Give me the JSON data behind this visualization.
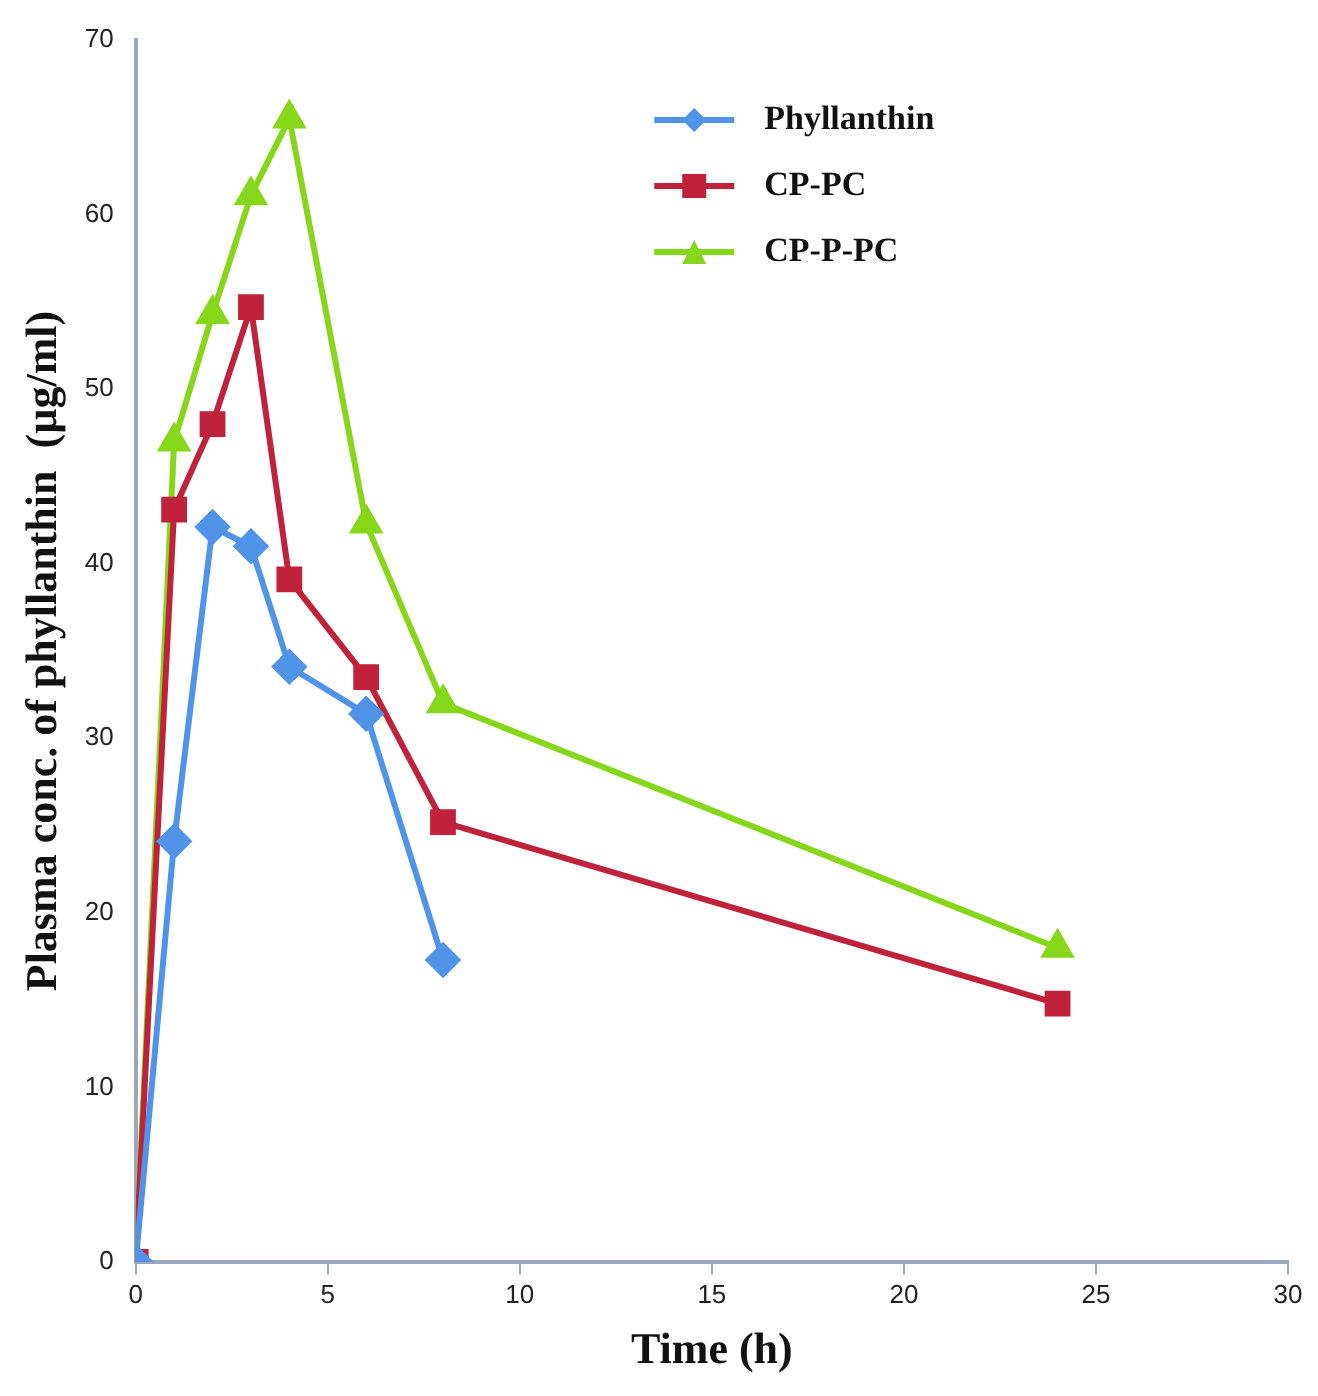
{
  "chart_data": {
    "type": "line",
    "xlabel": "Time (h)",
    "ylabel": "Plasma conc. of phyllanthin  (µg/ml)",
    "x": [
      0,
      1,
      2,
      3,
      4,
      6,
      8,
      24
    ],
    "series": [
      {
        "name": "Phyllanthin",
        "color": "#4f94e8",
        "marker": "diamond",
        "x": [
          0,
          1,
          2,
          3,
          4,
          6,
          8
        ],
        "values": [
          0,
          24.1,
          42.1,
          41.0,
          34.1,
          31.4,
          17.3
        ]
      },
      {
        "name": "CP-PC",
        "color": "#c0213b",
        "marker": "square",
        "values": [
          0,
          43.1,
          48.0,
          54.7,
          39.1,
          33.5,
          25.2,
          14.8
        ]
      },
      {
        "name": "CP-P-PC",
        "color": "#86d61a",
        "marker": "triangle",
        "values": [
          0,
          47.0,
          54.3,
          61.1,
          65.5,
          42.3,
          32.0,
          18.0
        ]
      }
    ],
    "xlim": [
      0,
      30
    ],
    "xticks": [
      0,
      5,
      10,
      15,
      20,
      25,
      30
    ],
    "ylim": [
      0,
      70
    ],
    "yticks": [
      0,
      10,
      20,
      30,
      40,
      50,
      60,
      70
    ],
    "grid": false,
    "legend": "top right",
    "line_style": "solid"
  }
}
